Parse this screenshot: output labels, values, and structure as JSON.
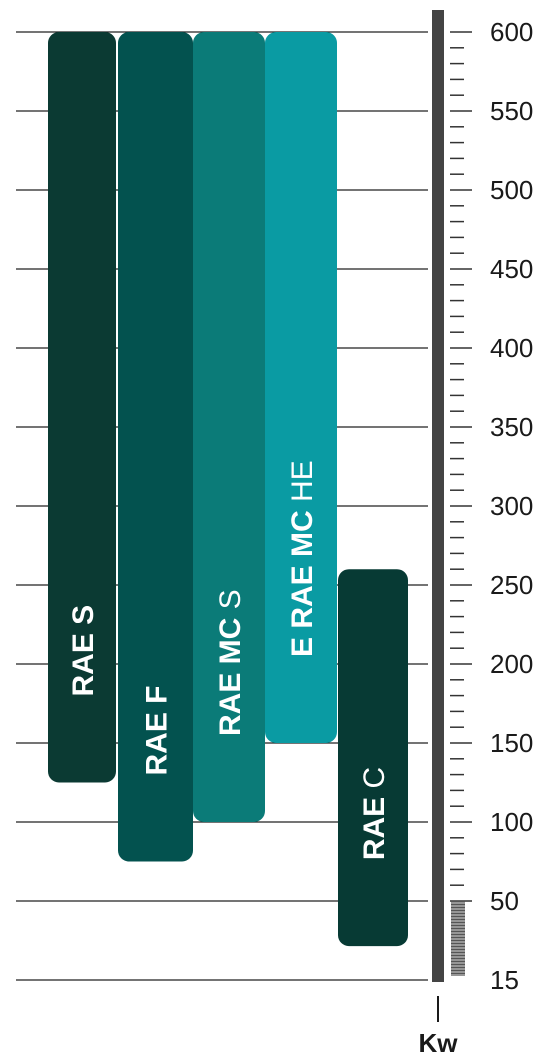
{
  "chart_data": {
    "type": "bar",
    "orientation": "floating-vertical-ranges",
    "unit": "Kw",
    "y_ticks": [
      15,
      50,
      100,
      150,
      200,
      250,
      300,
      350,
      400,
      450,
      500,
      550,
      600
    ],
    "ylim": [
      15,
      600
    ],
    "grid": true,
    "series": [
      {
        "name_bold": "RAE S",
        "name_light": "",
        "min": 125,
        "max": 600,
        "color": "#0b3a33"
      },
      {
        "name_bold": "RAE F",
        "name_light": "",
        "min": 75,
        "max": 600,
        "color": "#03524f"
      },
      {
        "name_bold": "RAE MC",
        "name_light": " S",
        "min": 100,
        "max": 600,
        "color": "#0b7b78"
      },
      {
        "name_bold": "E RAE MC",
        "name_light": " HE",
        "min": 150,
        "max": 600,
        "color": "#0a9ba3"
      },
      {
        "name_bold": "RAE",
        "name_light": " C",
        "min": 30,
        "max": 260,
        "color": "#073a34"
      }
    ],
    "scale_bar": {
      "color": "#444444",
      "fill_to": 50
    }
  }
}
